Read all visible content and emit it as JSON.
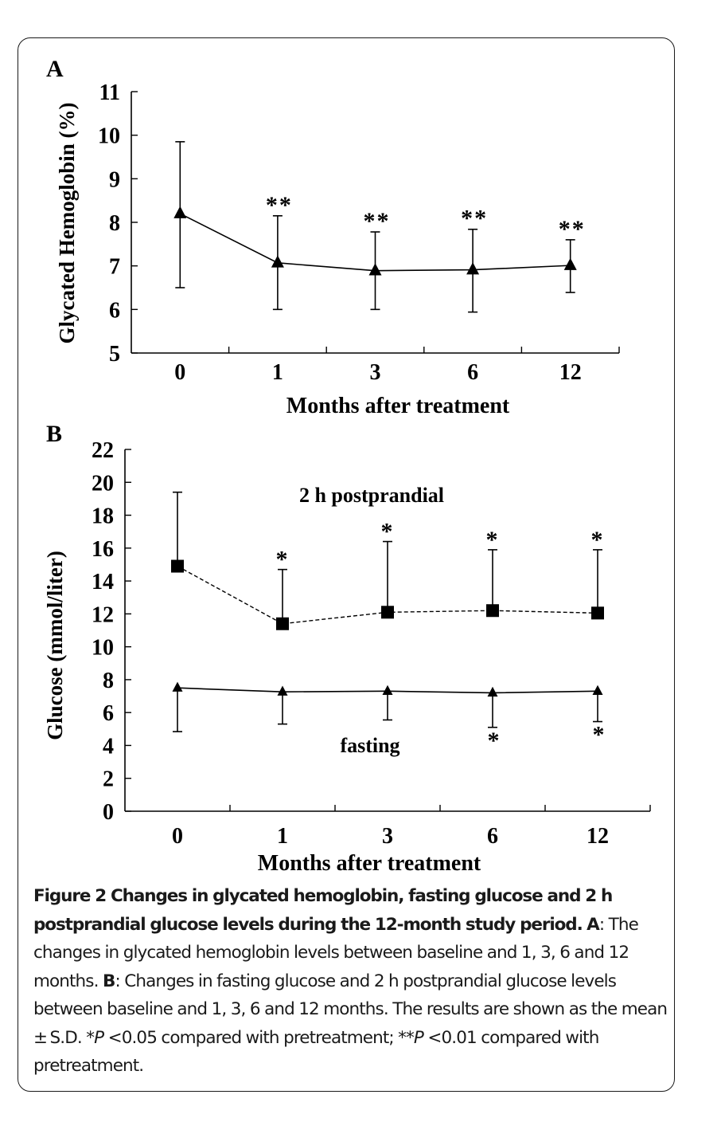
{
  "chart_data": [
    {
      "panel": "A",
      "type": "line",
      "title": "",
      "xlabel": "Months after treatment",
      "ylabel": "Glycated Hemoglobin (%)",
      "ylim": [
        5,
        11
      ],
      "yticks": [
        5,
        6,
        7,
        8,
        9,
        10,
        11
      ],
      "categories": [
        "0",
        "1",
        "3",
        "6",
        "12"
      ],
      "grid": false,
      "series": [
        {
          "name": "Glycated Hemoglobin",
          "marker": "triangle",
          "line": "solid",
          "values": [
            8.2,
            7.07,
            6.89,
            6.91,
            7.01
          ],
          "error_upper": [
            9.85,
            8.15,
            7.78,
            7.84,
            7.6
          ],
          "error_lower": [
            6.5,
            6.0,
            6.0,
            5.94,
            6.39
          ],
          "significance": [
            "",
            "**",
            "**",
            "**",
            "**"
          ]
        }
      ]
    },
    {
      "panel": "B",
      "type": "line",
      "title": "",
      "xlabel": "Months after treatment",
      "ylabel": "Glucose (mmol/liter)",
      "ylim": [
        0,
        22
      ],
      "yticks": [
        0,
        2,
        4,
        6,
        8,
        10,
        12,
        14,
        16,
        18,
        20,
        22
      ],
      "categories": [
        "0",
        "1",
        "3",
        "6",
        "12"
      ],
      "grid": false,
      "series": [
        {
          "name": "2 h postprandial",
          "marker": "square",
          "line": "dashed",
          "values": [
            14.9,
            11.4,
            12.1,
            12.2,
            12.05
          ],
          "error_upper": [
            19.4,
            14.7,
            16.4,
            15.9,
            15.9
          ],
          "error_direction": "up",
          "significance": [
            "",
            "*",
            "*",
            "*",
            "*"
          ],
          "significance_position": "above"
        },
        {
          "name": "fasting",
          "marker": "triangle",
          "line": "solid",
          "values": [
            7.5,
            7.26,
            7.3,
            7.2,
            7.3
          ],
          "error_lower": [
            4.84,
            5.3,
            5.55,
            5.1,
            5.45
          ],
          "error_direction": "down",
          "significance": [
            "",
            "",
            "",
            "*",
            "*"
          ],
          "significance_position": "below"
        }
      ]
    }
  ],
  "figure": {
    "panel_a_letter": "A",
    "panel_b_letter": "B",
    "caption_title": "Figure 2 Changes in glycated hemoglobin, fasting glucose and 2 h postprandial glucose levels during the 12-month study period.",
    "caption_a_label": "A",
    "caption_a_text": ": The changes in glycated hemoglobin levels between baseline and 1, 3, 6 and 12 months. ",
    "caption_b_label": "B",
    "caption_b_text": ": Changes in fasting glucose and 2 h postprandial glucose levels between baseline and 1, 3, 6 and 12 months. The results are shown as the mean ± S.D. *",
    "caption_p1": "P",
    "caption_mid": " <0.05 compared with pretreatment; **",
    "caption_p2": "P",
    "caption_end": " <0.01 compared with pretreatment."
  }
}
